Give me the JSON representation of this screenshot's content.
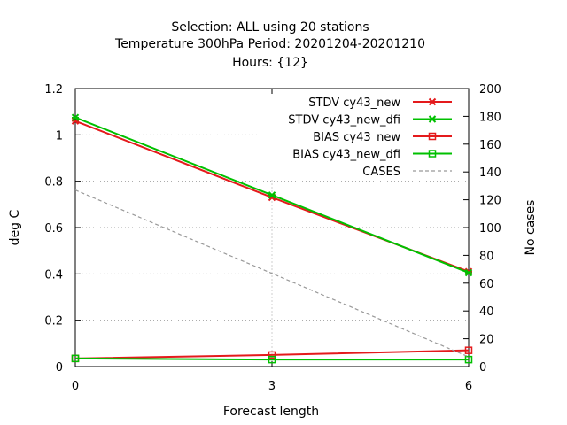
{
  "chart_data": {
    "type": "line",
    "title_lines": [
      "Selection: ALL using    20 stations",
      "Temperature 300hPa   Period: 20201204-20201210",
      "Hours: {12}"
    ],
    "xlabel": "Forecast length",
    "ylabel": "deg C",
    "y2label": "No cases",
    "x": [
      0,
      3,
      6
    ],
    "xlim": [
      0,
      6
    ],
    "ylim": [
      0,
      1.2
    ],
    "y2lim": [
      0,
      200
    ],
    "xticks": [
      "0",
      "3",
      "6"
    ],
    "yticks": [
      "0",
      "0.2",
      "0.4",
      "0.6",
      "0.8",
      "1",
      "1.2"
    ],
    "y2ticks": [
      "0",
      "20",
      "40",
      "60",
      "80",
      "100",
      "120",
      "140",
      "160",
      "180",
      "200"
    ],
    "grid": true,
    "legend_position": "top-right",
    "series": [
      {
        "name": "STDV cy43_new",
        "values": [
          1.06,
          0.73,
          0.41
        ],
        "color": "#e41a1c",
        "marker": "cross",
        "axis": "y",
        "dash": false
      },
      {
        "name": "STDV cy43_new_dfi",
        "values": [
          1.075,
          0.74,
          0.405
        ],
        "color": "#00c000",
        "marker": "cross",
        "axis": "y",
        "dash": false
      },
      {
        "name": "BIAS cy43_new",
        "values": [
          0.035,
          0.05,
          0.07
        ],
        "color": "#e41a1c",
        "marker": "square",
        "axis": "y",
        "dash": false
      },
      {
        "name": "BIAS cy43_new_dfi",
        "values": [
          0.035,
          0.03,
          0.03
        ],
        "color": "#00c000",
        "marker": "square",
        "axis": "y",
        "dash": false
      },
      {
        "name": "CASES",
        "values": [
          127,
          67,
          7
        ],
        "color": "#999999",
        "marker": "none",
        "axis": "y2",
        "dash": true
      }
    ]
  }
}
